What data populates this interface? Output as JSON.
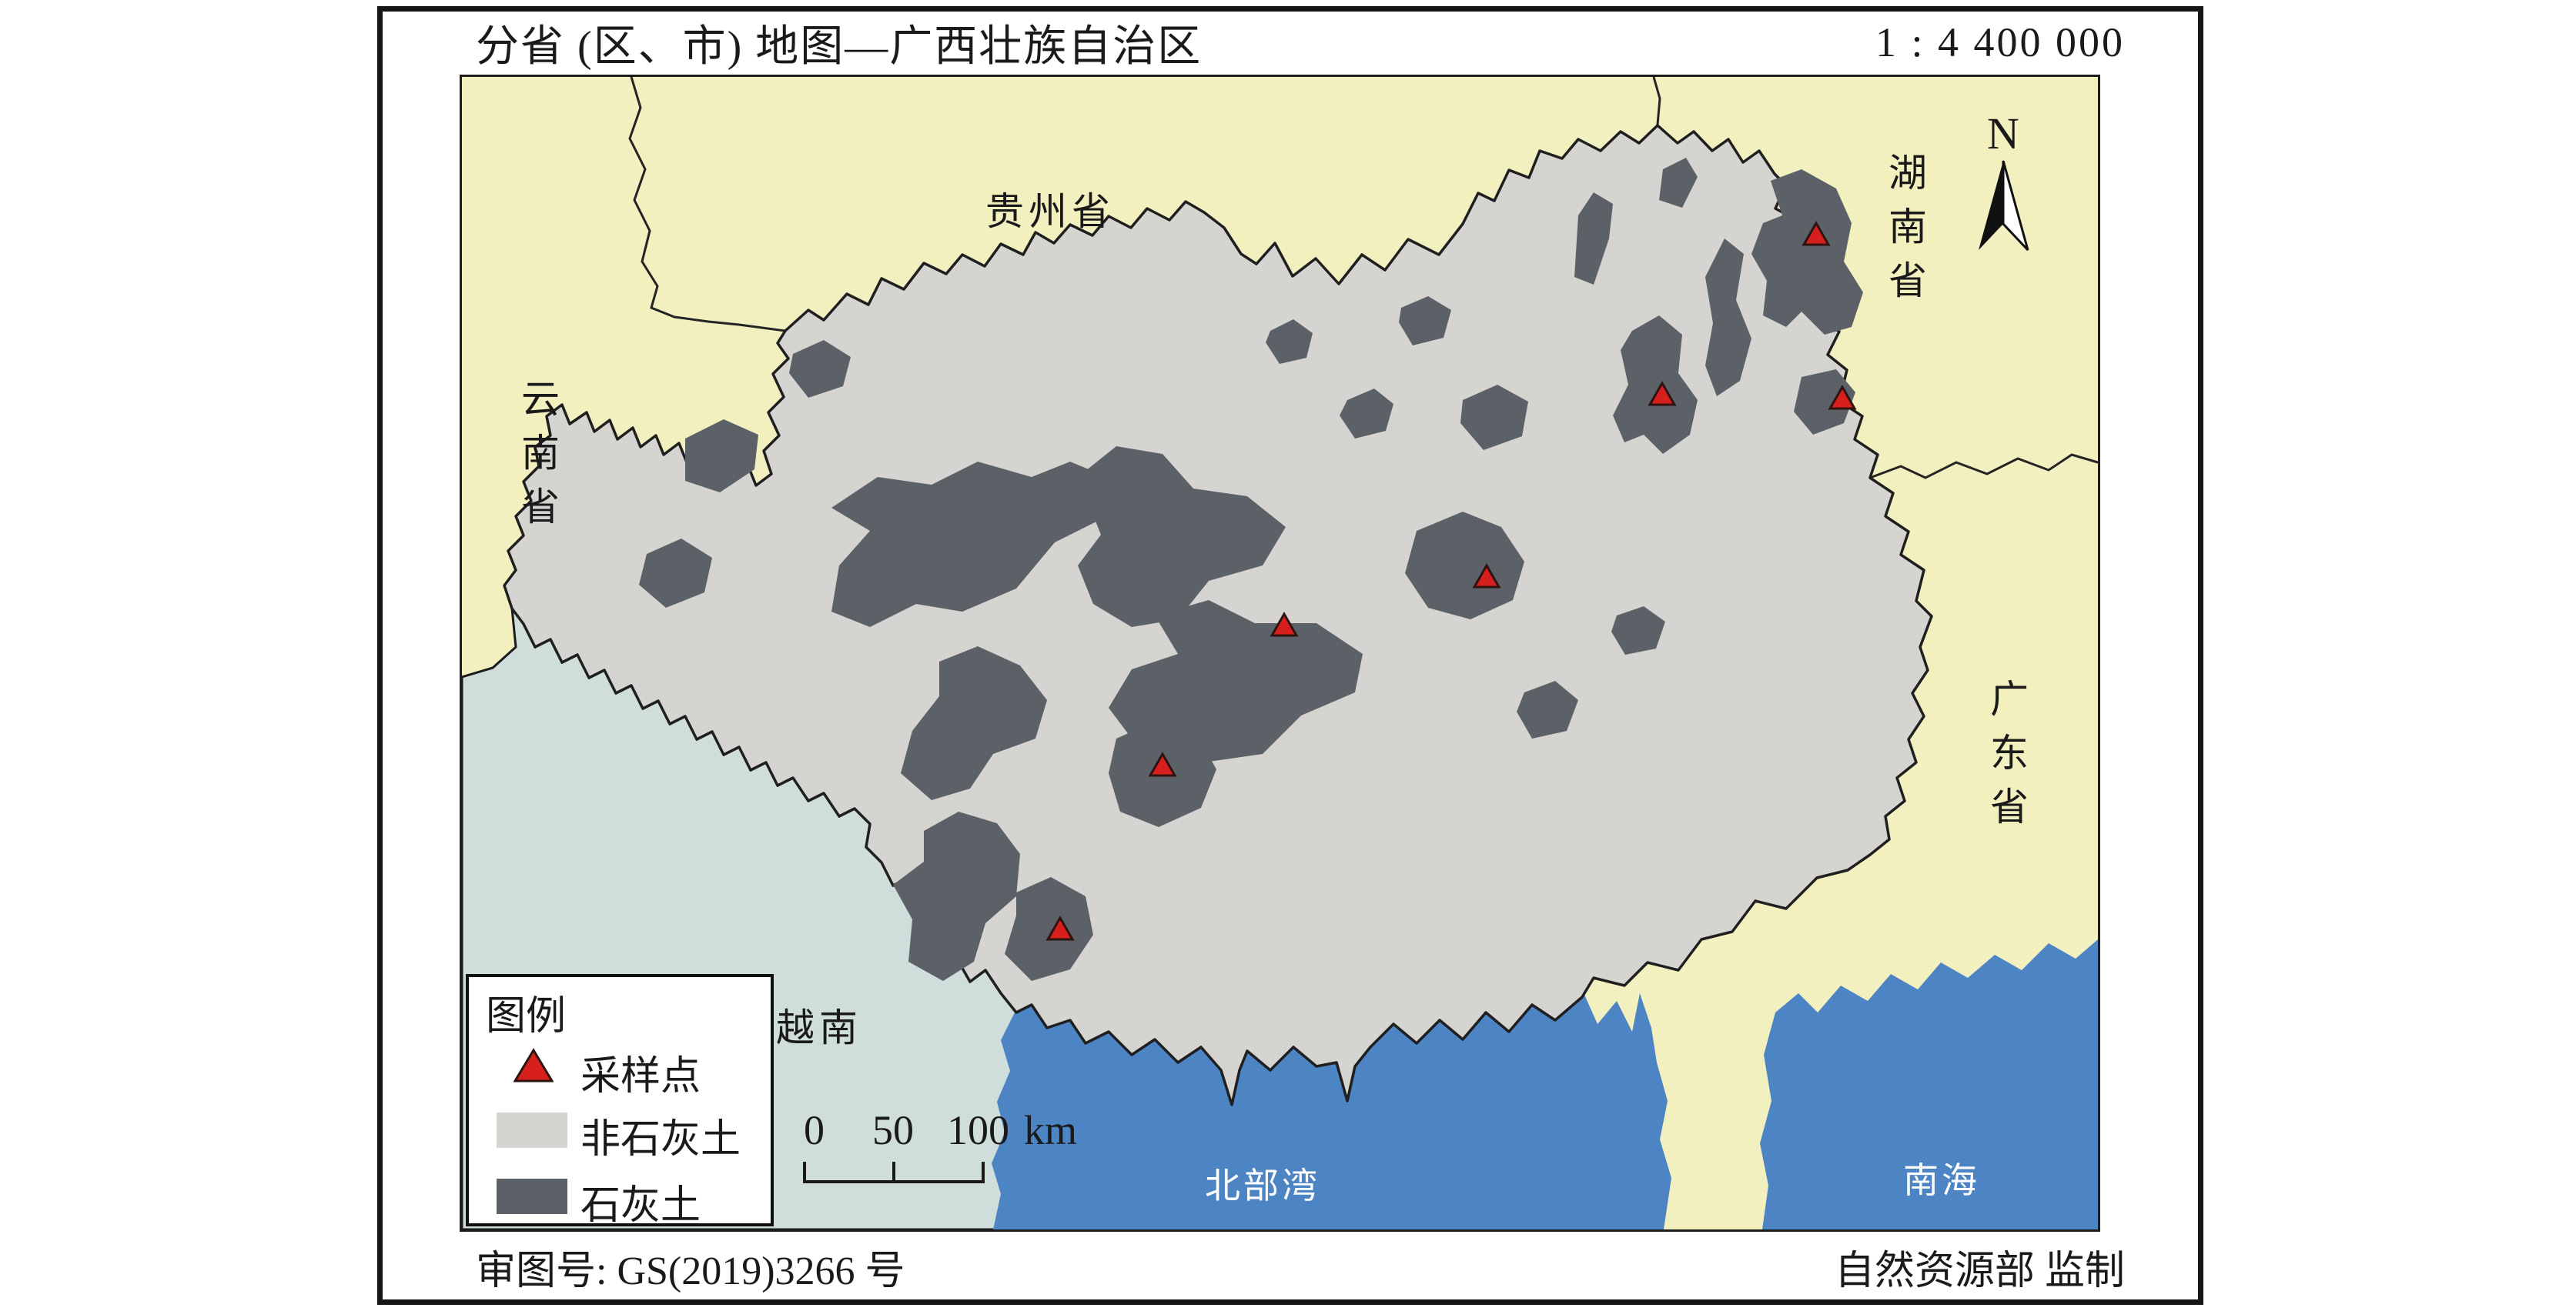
{
  "title": "分省 (区、市) 地图—广西壮族自治区",
  "scale_ratio": "1 : 4 400 000",
  "compass": {
    "north_label": "N"
  },
  "regions": {
    "guizhou": "贵州省",
    "yunnan": "云南省",
    "hunan": "湖南省",
    "guangdong": "广东省",
    "vietnam": "越南",
    "beibu_gulf": "北部湾",
    "south_china_sea": "南海"
  },
  "legend": {
    "title": "图例",
    "items": [
      {
        "label": "采样点",
        "marker": "triangle",
        "color": "#d7201d"
      },
      {
        "label": "非石灰土",
        "marker": "swatch",
        "color": "#d6d4d1"
      },
      {
        "label": "石灰土",
        "marker": "swatch",
        "color": "#5c6167"
      }
    ]
  },
  "scale_bar": {
    "ticks": [
      "0",
      "50",
      "100"
    ],
    "unit": "km"
  },
  "footer": {
    "approval_no": "审图号: GS(2019)3266 号",
    "producer": "自然资源部 监制"
  },
  "colors": {
    "neighbor_land": "#f3f0bf",
    "foreign_land": "#cfdedb",
    "sea": "#4d84c4",
    "non_limestone": "#d6d4d1",
    "limestone": "#5c6167",
    "sampling_point": "#d7201d",
    "boundary": "#1c1c1c",
    "sea_label_text": "#ffffff"
  },
  "sampling_points": [
    [
      1759,
      207
    ],
    [
      1559,
      415
    ],
    [
      1793,
      420
    ],
    [
      1331,
      652
    ],
    [
      1068,
      715
    ],
    [
      910,
      897
    ],
    [
      777,
      1110
    ]
  ]
}
